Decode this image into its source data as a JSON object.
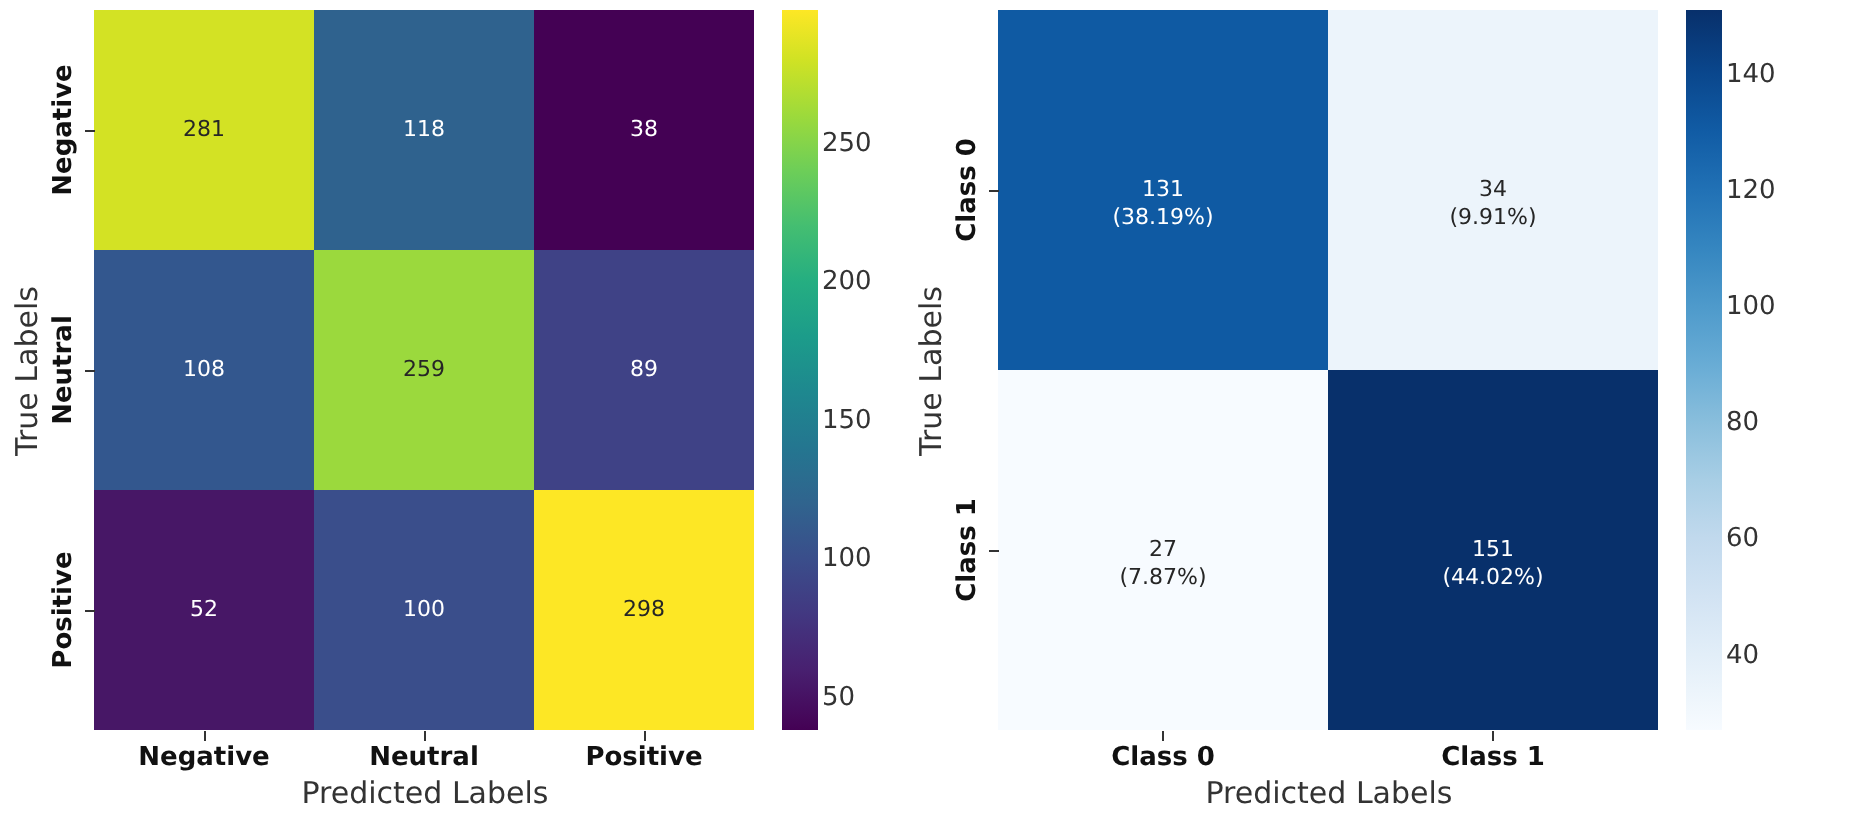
{
  "chart_data": [
    {
      "type": "heatmap",
      "xlabel": "Predicted Labels",
      "ylabel": "True Labels",
      "categories": [
        "Negative",
        "Neutral",
        "Positive"
      ],
      "y_categories": [
        "Negative",
        "Neutral",
        "Positive"
      ],
      "cells": [
        [
          281,
          118,
          38
        ],
        [
          108,
          259,
          89
        ],
        [
          52,
          100,
          298
        ]
      ],
      "data_labels": true,
      "clim": [
        38,
        298
      ],
      "cticks": [
        50,
        100,
        150,
        200,
        250
      ]
    },
    {
      "type": "heatmap",
      "xlabel": "Predicted Labels",
      "ylabel": "True Labels",
      "categories": [
        "Class 0",
        "Class 1"
      ],
      "y_categories": [
        "Class 0",
        "Class 1"
      ],
      "cells": [
        [
          131,
          34
        ],
        [
          27,
          151
        ]
      ],
      "cell_labels": [
        [
          "131\n(38.19%)",
          "34\n(9.91%)"
        ],
        [
          "27\n(7.87%)",
          "151\n(44.02%)"
        ]
      ],
      "clim": [
        27,
        151
      ],
      "cticks": [
        40,
        60,
        80,
        100,
        120,
        140
      ]
    }
  ]
}
